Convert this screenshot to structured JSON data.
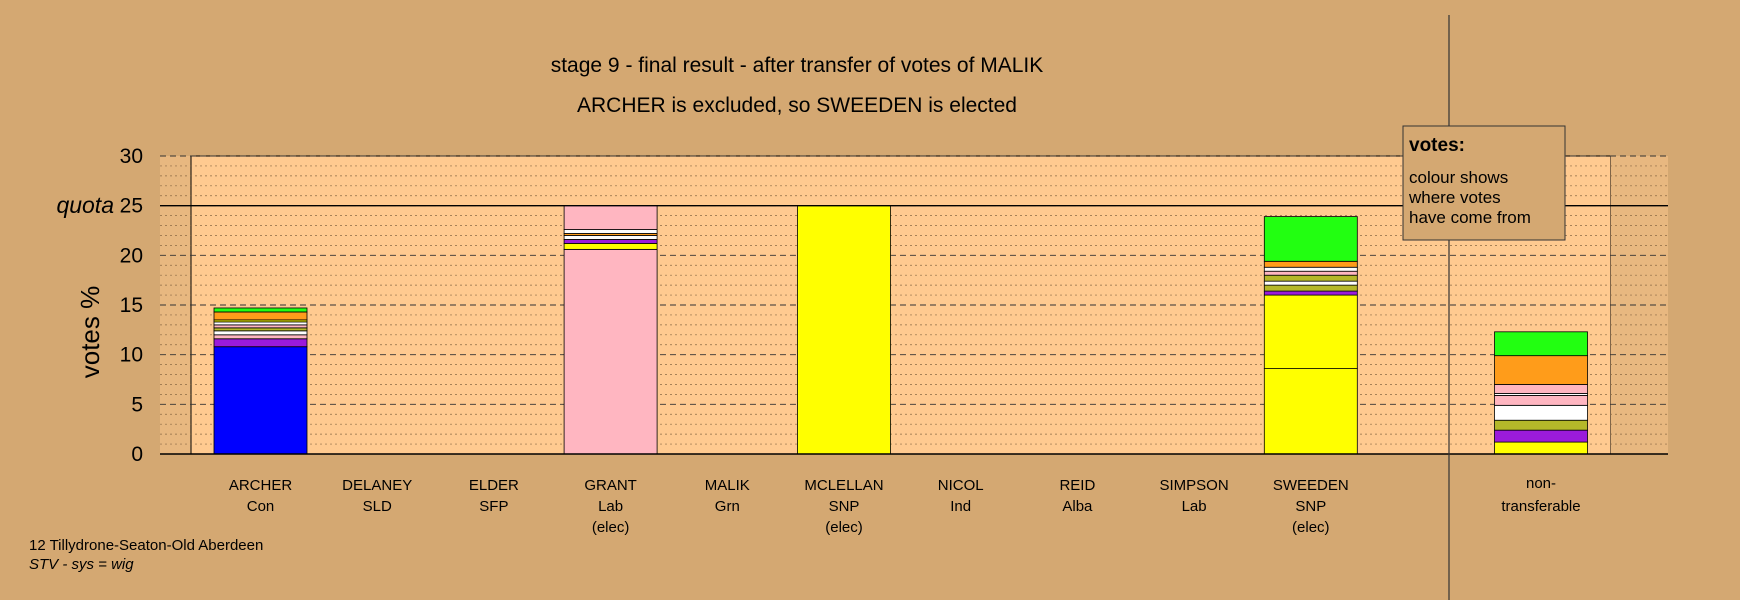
{
  "chart_data": {
    "type": "bar",
    "stacked": true,
    "title": "stage 9 - final result - after transfer of votes of MALIK",
    "subtitle": "ARCHER is excluded, so SWEEDEN is elected",
    "ylabel": "votes %",
    "ylim": [
      0,
      30
    ],
    "yticks": [
      0,
      5,
      10,
      15,
      20,
      25,
      30
    ],
    "quota": {
      "label": "quota",
      "value": 25
    },
    "grid": true,
    "legend": {
      "title": "votes:",
      "lines": [
        "colour shows",
        "where votes",
        "have come from"
      ],
      "position": "top-right"
    },
    "footer": {
      "ward": "12 Tillydrone-Seaton-Old Aberdeen",
      "system": "STV - sys = wig"
    },
    "colors": {
      "Con": "#0000ff",
      "Lab": "#ffb6c1",
      "SNP": "#ffff00",
      "SNP2": "#ffff00",
      "Grn": "#22ff11",
      "Alba": "#ff9c1a",
      "Ind": "#ffffff",
      "SLD": "#9b1bdb",
      "SFP": "#b5b829"
    },
    "categories": [
      {
        "name": "ARCHER",
        "party": "Con",
        "note": "",
        "segments": [
          [
            "Con",
            10.8
          ],
          [
            "SLD",
            0.8
          ],
          [
            "Lab",
            0.4
          ],
          [
            "Ind",
            0.4
          ],
          [
            "SFP",
            0.3
          ],
          [
            "Lab",
            0.3
          ],
          [
            "Ind",
            0.3
          ],
          [
            "SNP",
            0.2
          ],
          [
            "Alba",
            0.8
          ],
          [
            "Grn",
            0.4
          ]
        ]
      },
      {
        "name": "DELANEY",
        "party": "SLD",
        "note": "",
        "segments": []
      },
      {
        "name": "ELDER",
        "party": "SFP",
        "note": "",
        "segments": []
      },
      {
        "name": "GRANT",
        "party": "Lab",
        "note": "(elec)",
        "segments": [
          [
            "Lab",
            20.6
          ],
          [
            "SNP",
            0.6
          ],
          [
            "SLD",
            0.4
          ],
          [
            "Ind",
            0.4
          ],
          [
            "Alba",
            0.2
          ],
          [
            "Ind",
            0.4
          ],
          [
            "Lab",
            2.4
          ]
        ]
      },
      {
        "name": "MALIK",
        "party": "Grn",
        "note": "",
        "segments": []
      },
      {
        "name": "MCLELLAN",
        "party": "SNP",
        "note": "(elec)",
        "segments": [
          [
            "SNP",
            25.0
          ]
        ]
      },
      {
        "name": "NICOL",
        "party": "Ind",
        "note": "",
        "segments": []
      },
      {
        "name": "REID",
        "party": "Alba",
        "note": "",
        "segments": []
      },
      {
        "name": "SIMPSON",
        "party": "Lab",
        "note": "",
        "segments": []
      },
      {
        "name": "SWEEDEN",
        "party": "SNP",
        "note": "(elec)",
        "segments": [
          [
            "SNP",
            8.6
          ],
          [
            "SNP2",
            7.4
          ],
          [
            "SLD",
            0.4
          ],
          [
            "SFP",
            0.6
          ],
          [
            "Ind",
            0.4
          ],
          [
            "SFP",
            0.6
          ],
          [
            "Lab",
            0.4
          ],
          [
            "Ind",
            0.4
          ],
          [
            "Alba",
            0.6
          ],
          [
            "Grn",
            4.5
          ]
        ]
      }
    ],
    "nontransferable": {
      "label1": "non-",
      "label2": "transferable",
      "segments": [
        [
          "SNP",
          1.2
        ],
        [
          "SLD",
          1.2
        ],
        [
          "SFP",
          1.0
        ],
        [
          "Ind",
          1.5
        ],
        [
          "Lab",
          1.0
        ],
        [
          "Ind",
          0.2
        ],
        [
          "Lab",
          0.9
        ],
        [
          "Alba",
          2.9
        ],
        [
          "Grn",
          2.4
        ]
      ]
    }
  }
}
